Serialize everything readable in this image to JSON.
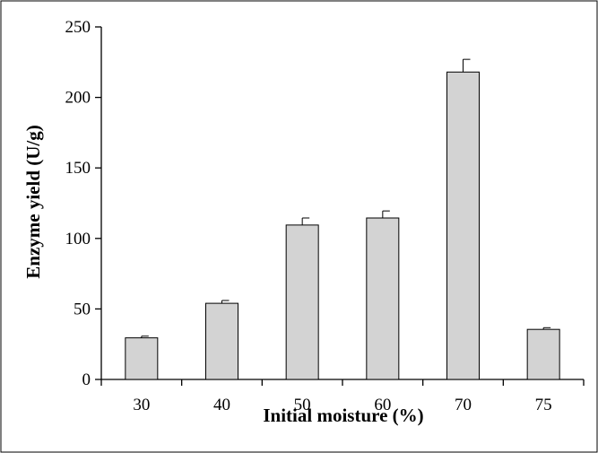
{
  "chart_data": {
    "type": "bar",
    "categories": [
      "30",
      "40",
      "50",
      "60",
      "70",
      "75"
    ],
    "values": [
      29.5,
      54,
      109.5,
      114.5,
      218,
      35.5
    ],
    "errors": [
      1.2,
      2,
      5,
      5,
      9,
      1.2
    ],
    "xlabel": "Initial moisture (%)",
    "ylabel": "Enzyme yield (U/g)",
    "ylim": [
      0,
      250
    ],
    "yticks": [
      0,
      50,
      100,
      150,
      200,
      250
    ],
    "grid": false,
    "bar_color": "#d3d3d3",
    "edge_color": "#000000"
  }
}
